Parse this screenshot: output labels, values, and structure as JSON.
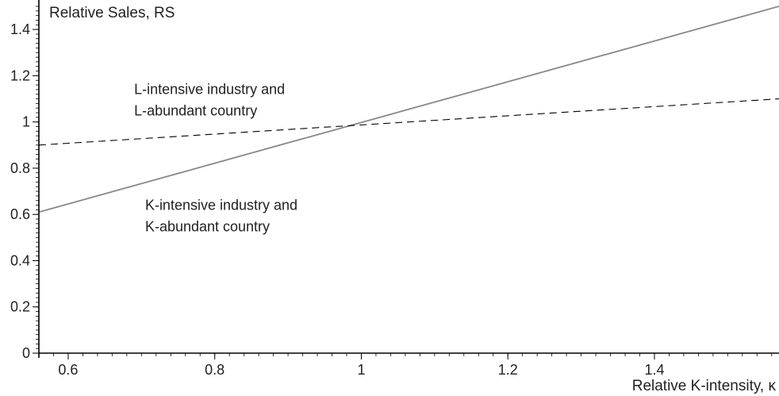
{
  "chart_data": {
    "type": "line",
    "title": "",
    "ylabel": "Relative Sales, RS",
    "xlabel": "Relative K-intensity, κ",
    "xlim": [
      0.56,
      1.57
    ],
    "ylim": [
      0,
      1.5
    ],
    "x_ticks": [
      0.6,
      0.8,
      1,
      1.2,
      1.4
    ],
    "x_tick_labels": [
      "0.6",
      "0.8",
      "1",
      "1.2",
      "1.4"
    ],
    "y_ticks": [
      0,
      0.2,
      0.4,
      0.6,
      0.8,
      1,
      1.2,
      1.4
    ],
    "y_tick_labels": [
      "0",
      "0.2",
      "0.4",
      "0.6",
      "0.8",
      "1",
      "1.2",
      "1.4"
    ],
    "grid": false,
    "series": [
      {
        "style": "solid",
        "color": "#888888",
        "x": [
          0.56,
          1.57
        ],
        "y": [
          0.61,
          1.5
        ]
      },
      {
        "style": "dashed",
        "color": "#000000",
        "x": [
          0.56,
          1.57
        ],
        "y": [
          0.9,
          1.1
        ]
      }
    ],
    "annotations": [
      {
        "lines": [
          "L-intensive industry and",
          "L-abundant country"
        ],
        "x": 0.69,
        "y": 1.12
      },
      {
        "lines": [
          "K-intensive industry and",
          "K-abundant country"
        ],
        "x": 0.705,
        "y": 0.62
      }
    ]
  }
}
